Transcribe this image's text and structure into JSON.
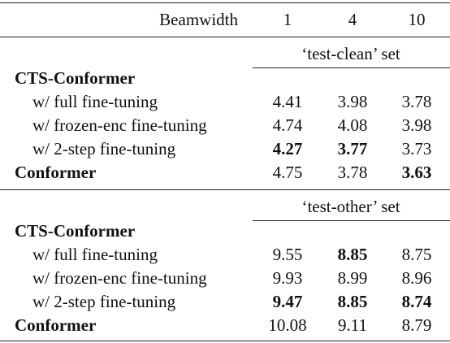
{
  "header": {
    "label": "Beamwidth",
    "beams": [
      "1",
      "4",
      "10"
    ]
  },
  "sections": [
    {
      "set_label": "‘test-clean’ set",
      "model": "CTS-Conformer",
      "rows": [
        {
          "label": "w/ full fine-tuning",
          "values": [
            "4.41",
            "3.98",
            "3.78"
          ],
          "bold": [
            false,
            false,
            false
          ]
        },
        {
          "label": "w/ frozen-enc fine-tuning",
          "values": [
            "4.74",
            "4.08",
            "3.98"
          ],
          "bold": [
            false,
            false,
            false
          ]
        },
        {
          "label": "w/ 2-step fine-tuning",
          "values": [
            "4.27",
            "3.77",
            "3.73"
          ],
          "bold": [
            true,
            true,
            false
          ]
        }
      ],
      "baseline": {
        "label": "Conformer",
        "values": [
          "4.75",
          "3.78",
          "3.63"
        ],
        "bold": [
          false,
          false,
          true
        ]
      }
    },
    {
      "set_label": "‘test-other’ set",
      "model": "CTS-Conformer",
      "rows": [
        {
          "label": "w/ full fine-tuning",
          "values": [
            "9.55",
            "8.85",
            "8.75"
          ],
          "bold": [
            false,
            true,
            false
          ]
        },
        {
          "label": "w/ frozen-enc fine-tuning",
          "values": [
            "9.93",
            "8.99",
            "8.96"
          ],
          "bold": [
            false,
            false,
            false
          ]
        },
        {
          "label": "w/ 2-step fine-tuning",
          "values": [
            "9.47",
            "8.85",
            "8.74"
          ],
          "bold": [
            true,
            true,
            true
          ]
        }
      ],
      "baseline": {
        "label": "Conformer",
        "values": [
          "10.08",
          "9.11",
          "8.79"
        ],
        "bold": [
          false,
          false,
          false
        ]
      }
    }
  ]
}
